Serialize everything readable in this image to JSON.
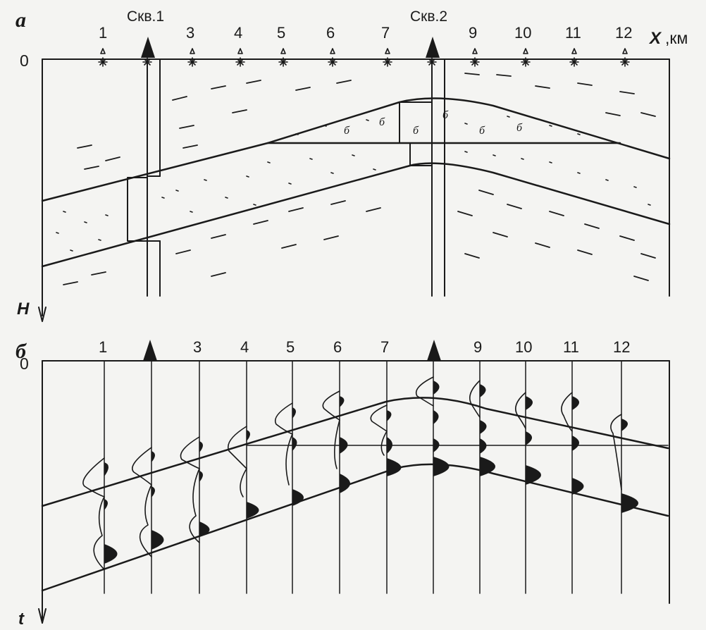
{
  "panel_a": {
    "label": "а",
    "well_1_label": "Скв.1",
    "well_2_label": "Скв.2",
    "x_axis_label": "X",
    "x_unit": ",км",
    "depth_zero": "0",
    "depth_axis_label": "H",
    "stations": [
      "1",
      "3",
      "4",
      "5",
      "6",
      "7",
      "9",
      "10",
      "11",
      "12"
    ],
    "gas_marks": [
      "б",
      "б",
      "б",
      "б",
      "б",
      "б"
    ]
  },
  "panel_b": {
    "label": "б",
    "time_zero": "0",
    "time_axis_label": "t",
    "traces": [
      "1",
      "3",
      "4",
      "5",
      "6",
      "7",
      "9",
      "10",
      "11",
      "12"
    ]
  },
  "colors": {
    "ink": "#1a1a1a",
    "paper": "#f4f4f2"
  }
}
